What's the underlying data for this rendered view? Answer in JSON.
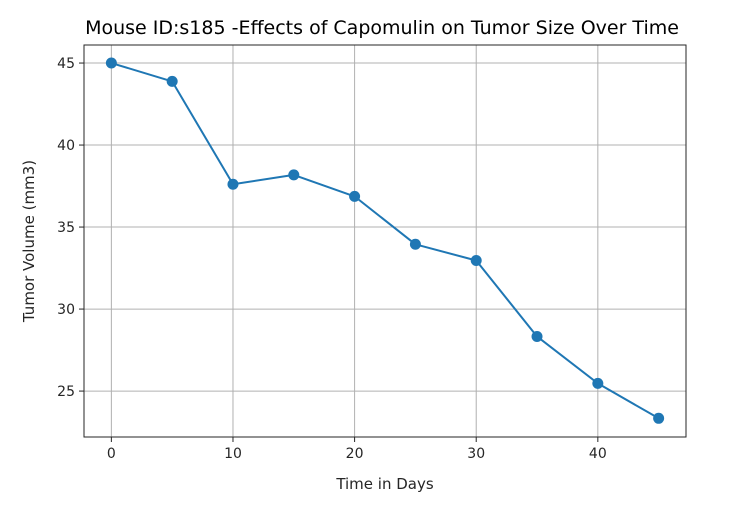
{
  "chart_data": {
    "type": "line",
    "title": "Mouse ID:s185 -Effects of Capomulin on Tumor Size Over Time",
    "xlabel": "Time in Days",
    "ylabel": "Tumor Volume (mm3)",
    "x": [
      0,
      5,
      10,
      15,
      20,
      25,
      30,
      35,
      40,
      45
    ],
    "series": [
      {
        "values": [
          45.0,
          43.88,
          37.61,
          38.18,
          36.87,
          33.95,
          32.96,
          28.33,
          25.47,
          23.34
        ],
        "color": "#1f77b4",
        "marker": "circle"
      }
    ],
    "xlim": [
      -2.25,
      47.25
    ],
    "ylim": [
      22.2,
      46.1
    ],
    "xticks": [
      0,
      10,
      20,
      30,
      40
    ],
    "yticks": [
      25,
      30,
      35,
      40,
      45
    ],
    "grid": true,
    "legend": "none"
  }
}
